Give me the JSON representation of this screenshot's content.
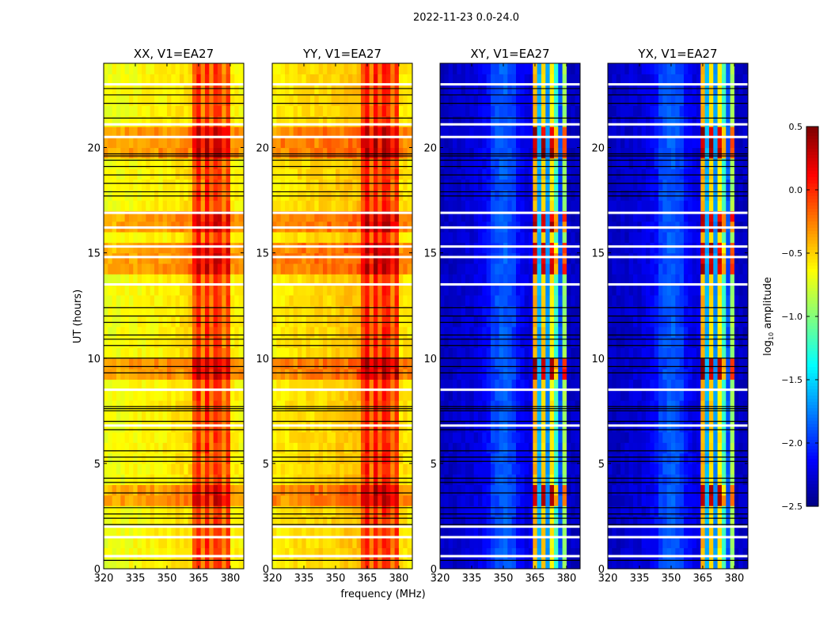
{
  "chart_data": {
    "type": "heatmap",
    "title": "2022-11-23 0.0-24.0",
    "xlabel": "frequency (MHz)",
    "ylabel": "UT (hours)",
    "xlim": [
      320,
      386.4
    ],
    "ylim": [
      0,
      24
    ],
    "xticks": [
      320,
      335,
      350,
      365,
      380
    ],
    "yticks": [
      0,
      5,
      10,
      15,
      20
    ],
    "freq_bin_start": 320,
    "freq_bin_width": 2,
    "time_bin_width": 0.5,
    "colorbar": {
      "label_main": "log",
      "label_sub": "10",
      "label_rest": " amplitude",
      "colormap": "jet",
      "range": [
        -2.5,
        0.5
      ],
      "ticks": [
        0.5,
        0.0,
        -0.5,
        -1.0,
        -1.5,
        -2.0,
        -2.5
      ],
      "tick_labels": [
        "0.5",
        "0.0",
        "−0.5",
        "−1.0",
        "−1.5",
        "−2.0",
        "−2.5"
      ]
    },
    "enhanced_hours": [
      [
        9.0,
        10.0
      ],
      [
        13.8,
        15.3
      ],
      [
        19.3,
        21.0
      ],
      [
        16.0,
        17.0
      ],
      [
        3.0,
        3.8
      ]
    ],
    "flag_lines_black": [
      22.8,
      22.5,
      22.1,
      21.4,
      19.7,
      19.6,
      19.4,
      19.1,
      18.7,
      18.3,
      17.9,
      17.7,
      12.4,
      12.0,
      11.7,
      11.1,
      10.9,
      10.6,
      10.0,
      9.6,
      9.3,
      7.7,
      7.6,
      7.5,
      7.0,
      6.6,
      5.6,
      5.3,
      5.1,
      4.3,
      4.1,
      3.6,
      2.9,
      2.6,
      2.4,
      2.1,
      0.4
    ],
    "flag_lines_white": [
      23.0,
      21.1,
      20.5,
      16.9,
      16.2,
      15.3,
      14.8,
      13.5,
      8.5,
      6.8,
      2.0,
      1.5,
      0.6
    ],
    "panels": [
      {
        "title": "XX, V1=EA27",
        "enhancement": 0.35,
        "freq_profile": [
          -0.68,
          -0.67,
          -0.66,
          -0.66,
          -0.65,
          -0.65,
          -0.64,
          -0.63,
          -0.63,
          -0.62,
          -0.62,
          -0.61,
          -0.6,
          -0.6,
          -0.59,
          -0.58,
          -0.57,
          -0.56,
          -0.55,
          -0.55,
          -0.5,
          -0.15,
          0.05,
          -0.3,
          0.05,
          -0.25,
          0.0,
          -0.05,
          -0.3,
          -0.05,
          -0.6,
          -0.6,
          -0.62
        ]
      },
      {
        "title": "YY, V1=EA27",
        "enhancement": 0.35,
        "freq_profile": [
          -0.6,
          -0.58,
          -0.57,
          -0.56,
          -0.55,
          -0.55,
          -0.54,
          -0.53,
          -0.53,
          -0.52,
          -0.52,
          -0.51,
          -0.5,
          -0.5,
          -0.49,
          -0.48,
          -0.47,
          -0.46,
          -0.45,
          -0.45,
          -0.42,
          -0.1,
          0.1,
          -0.25,
          0.1,
          -0.2,
          0.05,
          0.0,
          -0.25,
          0.0,
          -0.55,
          -0.55,
          -0.58
        ]
      },
      {
        "title": "XY, V1=EA27",
        "enhancement": 1.0,
        "freq_profile": [
          -2.3,
          -2.3,
          -2.3,
          -2.28,
          -2.28,
          -2.26,
          -2.25,
          -2.25,
          -2.22,
          -2.2,
          -2.15,
          -2.1,
          -1.95,
          -1.9,
          -1.85,
          -1.85,
          -1.9,
          -1.95,
          -2.1,
          -2.15,
          -2.2,
          -2.2,
          -0.4,
          -1.6,
          -0.5,
          -1.7,
          -0.6,
          -1.2,
          -1.9,
          -0.9,
          -2.3,
          -2.3,
          -2.3
        ]
      },
      {
        "title": "YX, V1=EA27",
        "enhancement": 1.0,
        "freq_profile": [
          -2.3,
          -2.3,
          -2.3,
          -2.28,
          -2.28,
          -2.26,
          -2.25,
          -2.25,
          -2.22,
          -2.2,
          -2.15,
          -2.1,
          -1.95,
          -1.9,
          -1.85,
          -1.85,
          -1.9,
          -1.95,
          -2.1,
          -2.15,
          -2.2,
          -2.2,
          -0.4,
          -1.6,
          -0.5,
          -1.7,
          -0.6,
          -1.2,
          -1.9,
          -0.9,
          -2.3,
          -2.3,
          -2.3
        ]
      }
    ]
  }
}
